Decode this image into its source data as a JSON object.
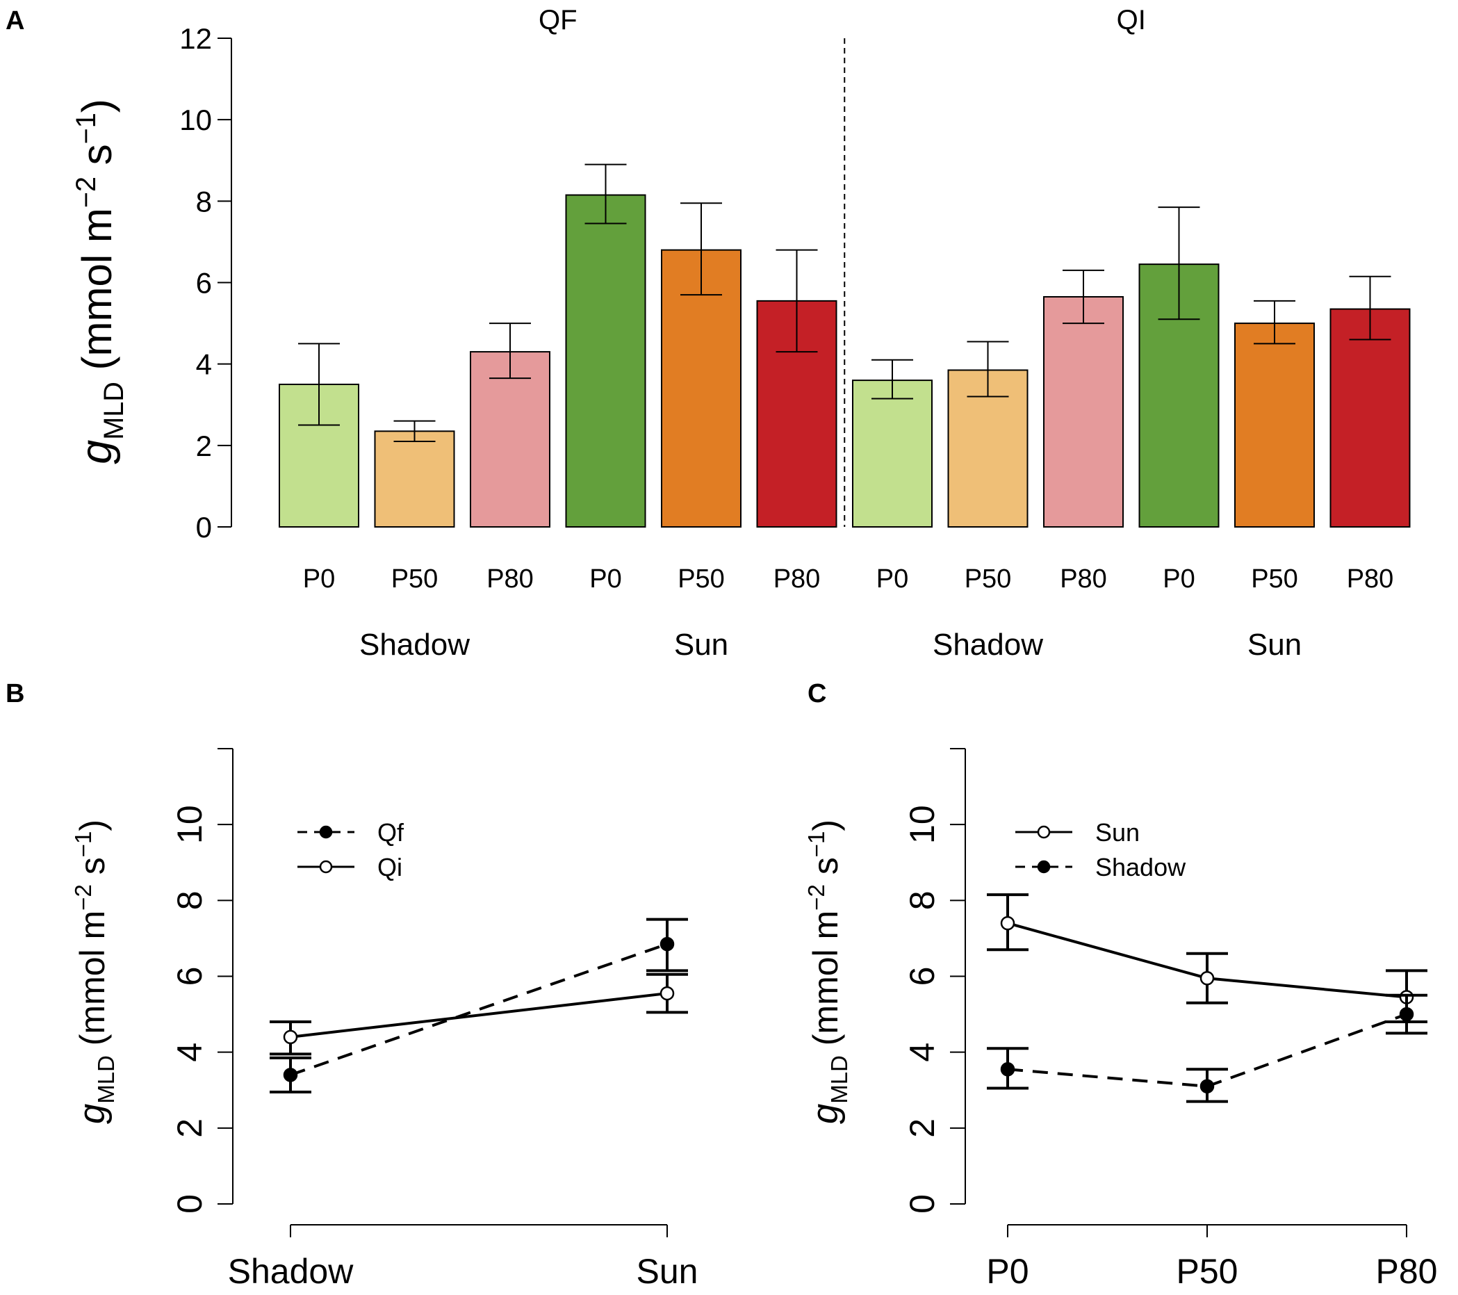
{
  "chart_data": [
    {
      "panel": "A",
      "type": "bar",
      "ylabel": {
        "symbol": "g",
        "sub": "MLD",
        "unit": "(mmol m",
        "exp1": "−2",
        "mid": " s",
        "exp2": "−1",
        "close": ")"
      },
      "ylim": [
        0,
        12
      ],
      "yticks": [
        0,
        2,
        4,
        6,
        8,
        10,
        12
      ],
      "facets": [
        {
          "label": "QF",
          "groups": [
            {
              "label": "Shadow",
              "bars": [
                {
                  "category": "P0",
                  "value": 3.5,
                  "err_low": 2.5,
                  "err_high": 4.5,
                  "color": "#c2e08e"
                },
                {
                  "category": "P50",
                  "value": 2.35,
                  "err_low": 2.1,
                  "err_high": 2.6,
                  "color": "#efbf77"
                },
                {
                  "category": "P80",
                  "value": 4.3,
                  "err_low": 3.65,
                  "err_high": 5.0,
                  "color": "#e59a9b"
                }
              ]
            },
            {
              "label": "Sun",
              "bars": [
                {
                  "category": "P0",
                  "value": 8.15,
                  "err_low": 7.45,
                  "err_high": 8.9,
                  "color": "#63a03c"
                },
                {
                  "category": "P50",
                  "value": 6.8,
                  "err_low": 5.7,
                  "err_high": 7.95,
                  "color": "#e17d23"
                },
                {
                  "category": "P80",
                  "value": 5.55,
                  "err_low": 4.3,
                  "err_high": 6.8,
                  "color": "#c42026"
                }
              ]
            }
          ]
        },
        {
          "label": "QI",
          "groups": [
            {
              "label": "Shadow",
              "bars": [
                {
                  "category": "P0",
                  "value": 3.6,
                  "err_low": 3.15,
                  "err_high": 4.1,
                  "color": "#c2e08e"
                },
                {
                  "category": "P50",
                  "value": 3.85,
                  "err_low": 3.2,
                  "err_high": 4.55,
                  "color": "#efbf77"
                },
                {
                  "category": "P80",
                  "value": 5.65,
                  "err_low": 5.0,
                  "err_high": 6.3,
                  "color": "#e59a9b"
                }
              ]
            },
            {
              "label": "Sun",
              "bars": [
                {
                  "category": "P0",
                  "value": 6.45,
                  "err_low": 5.1,
                  "err_high": 7.85,
                  "color": "#63a03c"
                },
                {
                  "category": "P50",
                  "value": 5.0,
                  "err_low": 4.5,
                  "err_high": 5.55,
                  "color": "#e17d23"
                },
                {
                  "category": "P80",
                  "value": 5.35,
                  "err_low": 4.6,
                  "err_high": 6.15,
                  "color": "#c42026"
                }
              ]
            }
          ]
        }
      ]
    },
    {
      "panel": "B",
      "type": "line",
      "ylabel": {
        "symbol": "g",
        "sub": "MLD",
        "unit": "(mmol m",
        "exp1": "−2",
        "mid": " s",
        "exp2": "−1",
        "close": ")"
      },
      "ylim": [
        0,
        12
      ],
      "yticks": [
        0,
        2,
        4,
        6,
        8,
        10
      ],
      "categories": [
        "Shadow",
        "Sun"
      ],
      "legend": "top-left",
      "series": [
        {
          "name": "Qf",
          "marker": "filled",
          "line": "dashed",
          "values": [
            3.4,
            6.85
          ],
          "err_low": [
            2.95,
            6.15
          ],
          "err_high": [
            3.85,
            7.5
          ]
        },
        {
          "name": "Qi",
          "marker": "open",
          "line": "solid",
          "values": [
            4.4,
            5.55
          ],
          "err_low": [
            3.95,
            5.05
          ],
          "err_high": [
            4.8,
            6.05
          ]
        }
      ]
    },
    {
      "panel": "C",
      "type": "line",
      "ylabel": {
        "symbol": "g",
        "sub": "MLD",
        "unit": "(mmol m",
        "exp1": "−2",
        "mid": " s",
        "exp2": "−1",
        "close": ")"
      },
      "ylim": [
        0,
        12
      ],
      "yticks": [
        0,
        2,
        4,
        6,
        8,
        10
      ],
      "categories": [
        "P0",
        "P50",
        "P80"
      ],
      "legend": "top-left",
      "series": [
        {
          "name": "Sun",
          "marker": "open",
          "line": "solid",
          "values": [
            7.4,
            5.95,
            5.45
          ],
          "err_low": [
            6.7,
            5.3,
            4.8
          ],
          "err_high": [
            8.15,
            6.6,
            6.15
          ]
        },
        {
          "name": "Shadow",
          "marker": "filled",
          "line": "dashed",
          "values": [
            3.55,
            3.1,
            5.0
          ],
          "err_low": [
            3.05,
            2.7,
            4.5
          ],
          "err_high": [
            4.1,
            3.55,
            5.5
          ]
        }
      ]
    }
  ]
}
